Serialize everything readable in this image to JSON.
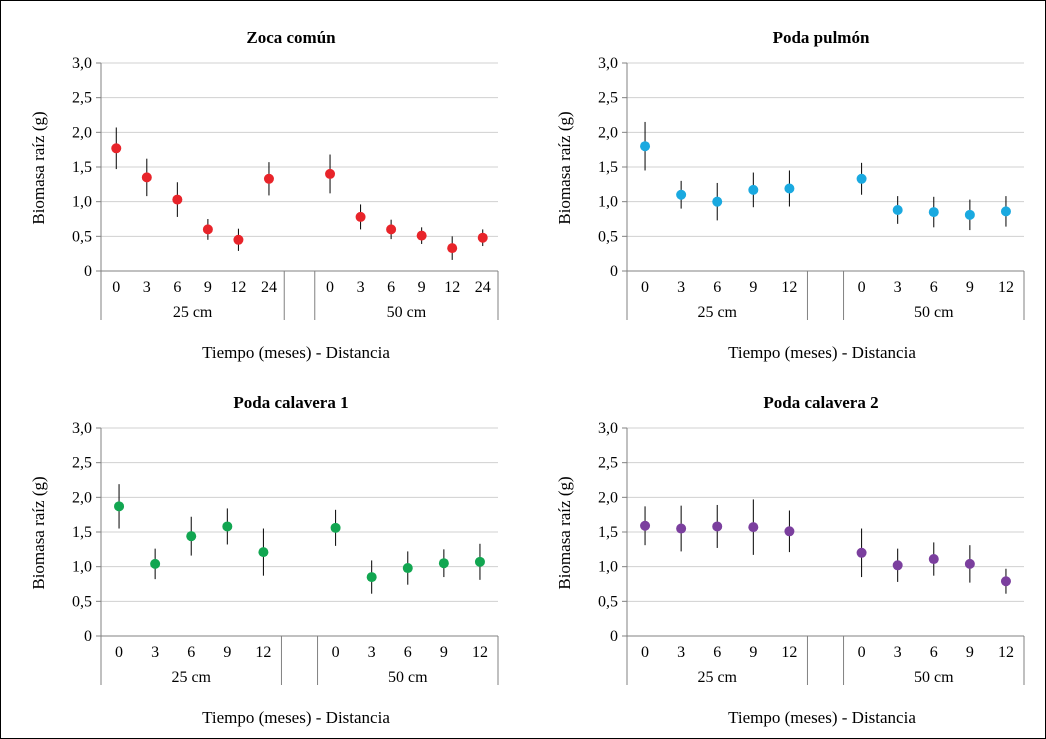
{
  "ylabel": "Biomasa raíz (g)",
  "xlabel": "Tiempo (meses) - Distancia",
  "y_ticks": [
    "3,0",
    "2,5",
    "2,0",
    "1,5",
    "1,0",
    "0,5",
    "0"
  ],
  "chart_data": [
    {
      "type": "scatter",
      "title": "Zoca común",
      "color": "#e8242a",
      "xlabel": "Tiempo (meses) - Distancia",
      "ylabel": "Biomasa raíz (g)",
      "ylim": [
        0,
        3.0
      ],
      "y_ticks": [
        "3,0",
        "2,5",
        "2,0",
        "1,5",
        "1,0",
        "0,5",
        "0"
      ],
      "grid": true,
      "groups": [
        {
          "label": "25 cm",
          "months": [
            "0",
            "3",
            "6",
            "9",
            "12",
            "24"
          ],
          "values": [
            1.77,
            1.35,
            1.03,
            0.6,
            0.45,
            1.33
          ],
          "error": [
            0.3,
            0.27,
            0.25,
            0.15,
            0.16,
            0.24
          ]
        },
        {
          "label": "50 cm",
          "months": [
            "0",
            "3",
            "6",
            "9",
            "12",
            "24"
          ],
          "values": [
            1.4,
            0.78,
            0.6,
            0.51,
            0.33,
            0.48
          ],
          "error": [
            0.28,
            0.18,
            0.14,
            0.12,
            0.17,
            0.12
          ]
        }
      ]
    },
    {
      "type": "scatter",
      "title": "Poda pulmón",
      "color": "#1aa9e0",
      "xlabel": "Tiempo (meses) - Distancia",
      "ylabel": "Biomasa raíz (g)",
      "ylim": [
        0,
        3.0
      ],
      "y_ticks": [
        "3,0",
        "2,5",
        "2,0",
        "1,5",
        "1,0",
        "0,5",
        "0"
      ],
      "grid": true,
      "groups": [
        {
          "label": "25 cm",
          "months": [
            "0",
            "3",
            "6",
            "9",
            "12"
          ],
          "values": [
            1.8,
            1.1,
            1.0,
            1.17,
            1.19
          ],
          "error": [
            0.35,
            0.2,
            0.27,
            0.25,
            0.26
          ]
        },
        {
          "label": "50 cm",
          "months": [
            "0",
            "3",
            "6",
            "9",
            "12"
          ],
          "values": [
            1.33,
            0.88,
            0.85,
            0.81,
            0.86
          ],
          "error": [
            0.23,
            0.2,
            0.22,
            0.22,
            0.22
          ]
        }
      ]
    },
    {
      "type": "scatter",
      "title": "Poda calavera 1",
      "color": "#12a651",
      "xlabel": "Tiempo (meses) - Distancia",
      "ylabel": "Biomasa raíz (g)",
      "ylim": [
        0,
        3.0
      ],
      "y_ticks": [
        "3,0",
        "2,5",
        "2,0",
        "1,5",
        "1,0",
        "0,5",
        "0"
      ],
      "grid": true,
      "groups": [
        {
          "label": "25 cm",
          "months": [
            "0",
            "3",
            "6",
            "9",
            "12"
          ],
          "values": [
            1.87,
            1.04,
            1.44,
            1.58,
            1.21
          ],
          "error": [
            0.32,
            0.22,
            0.28,
            0.26,
            0.34
          ]
        },
        {
          "label": "50 cm",
          "months": [
            "0",
            "3",
            "6",
            "9",
            "12"
          ],
          "values": [
            1.56,
            0.85,
            0.98,
            1.05,
            1.07
          ],
          "error": [
            0.26,
            0.24,
            0.24,
            0.2,
            0.26
          ]
        }
      ]
    },
    {
      "type": "scatter",
      "title": "Poda calavera 2",
      "color": "#7b3f9e",
      "xlabel": "Tiempo (meses) - Distancia",
      "ylabel": "Biomasa raíz (g)",
      "ylim": [
        0,
        3.0
      ],
      "y_ticks": [
        "3,0",
        "2,5",
        "2,0",
        "1,5",
        "1,0",
        "0,5",
        "0"
      ],
      "grid": true,
      "groups": [
        {
          "label": "25 cm",
          "months": [
            "0",
            "3",
            "6",
            "9",
            "12"
          ],
          "values": [
            1.59,
            1.55,
            1.58,
            1.57,
            1.51
          ],
          "error": [
            0.28,
            0.33,
            0.31,
            0.4,
            0.3
          ]
        },
        {
          "label": "50 cm",
          "months": [
            "0",
            "3",
            "6",
            "9",
            "12"
          ],
          "values": [
            1.2,
            1.02,
            1.11,
            1.04,
            0.79
          ],
          "error": [
            0.35,
            0.24,
            0.24,
            0.27,
            0.18
          ]
        }
      ]
    }
  ]
}
